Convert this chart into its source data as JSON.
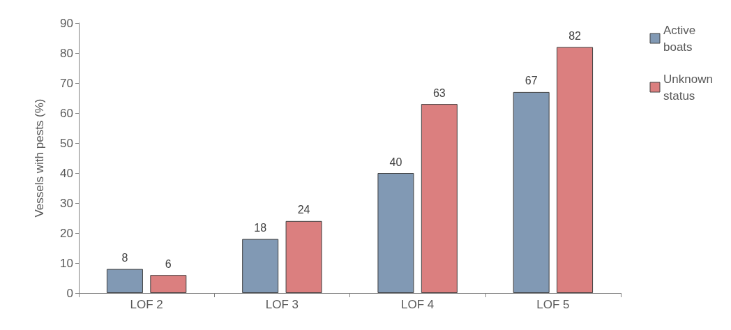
{
  "chart_data": {
    "type": "bar",
    "ylabel": "Vessels with pests (%)",
    "categories": [
      "LOF 2",
      "LOF 3",
      "LOF 4",
      "LOF 5"
    ],
    "series": [
      {
        "name": "Active boats",
        "color": "#8199b4",
        "values": [
          8,
          18,
          40,
          67
        ]
      },
      {
        "name": "Unknown status",
        "color": "#db7f7f",
        "values": [
          6,
          24,
          63,
          82
        ]
      }
    ],
    "ylim": [
      0,
      90
    ],
    "yticks": [
      0,
      10,
      20,
      30,
      40,
      50,
      60,
      70,
      80,
      90
    ],
    "grid": false,
    "legend": "top right",
    "data_labels": true
  }
}
